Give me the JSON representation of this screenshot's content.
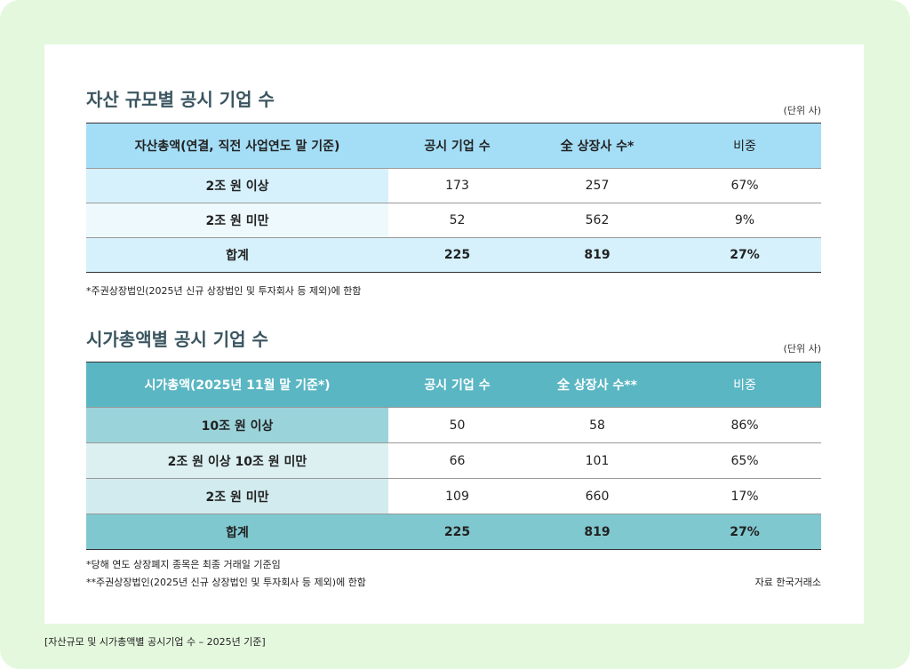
{
  "section1": {
    "title": "자산 규모별 공시 기업 수",
    "unit": "(단위 사)",
    "header": [
      "자산총액(연결, 직전 사업연도 말 기준)",
      "공시 기업 수",
      "全 상장사 수*",
      "비중"
    ],
    "rows": [
      [
        "2조 원 이상",
        "173",
        "257",
        "67%"
      ],
      [
        "2조 원 미만",
        "52",
        "562",
        "9%"
      ],
      [
        "합계",
        "225",
        "819",
        "27%"
      ]
    ],
    "notes": [
      "*주권상장법인(2025년 신규 상장법인 및 투자회사 등 제외)에 한함"
    ]
  },
  "section2": {
    "title": "시가총액별 공시 기업 수",
    "unit": "(단위 사)",
    "header": [
      "시가총액(2025년 11월 말 기준*)",
      "공시 기업 수",
      "全 상장사 수**",
      "비중"
    ],
    "rows": [
      [
        "10조 원 이상",
        "50",
        "58",
        "86%"
      ],
      [
        "2조 원 이상 10조 원 미만",
        "66",
        "101",
        "65%"
      ],
      [
        "2조 원 미만",
        "109",
        "660",
        "17%"
      ],
      [
        "합계",
        "225",
        "819",
        "27%"
      ]
    ],
    "notes": [
      "*당해 연도 상장폐지 종목은 최종 거래일 기준임",
      "**주권상장법인(2025년 신규 상장법인 및 투자회사 등 제외)에 한함"
    ],
    "source": "자료 한국거래소"
  },
  "caption": "[자산규모 및 시가총액별 공시기업 수 – 2025년 기준]"
}
